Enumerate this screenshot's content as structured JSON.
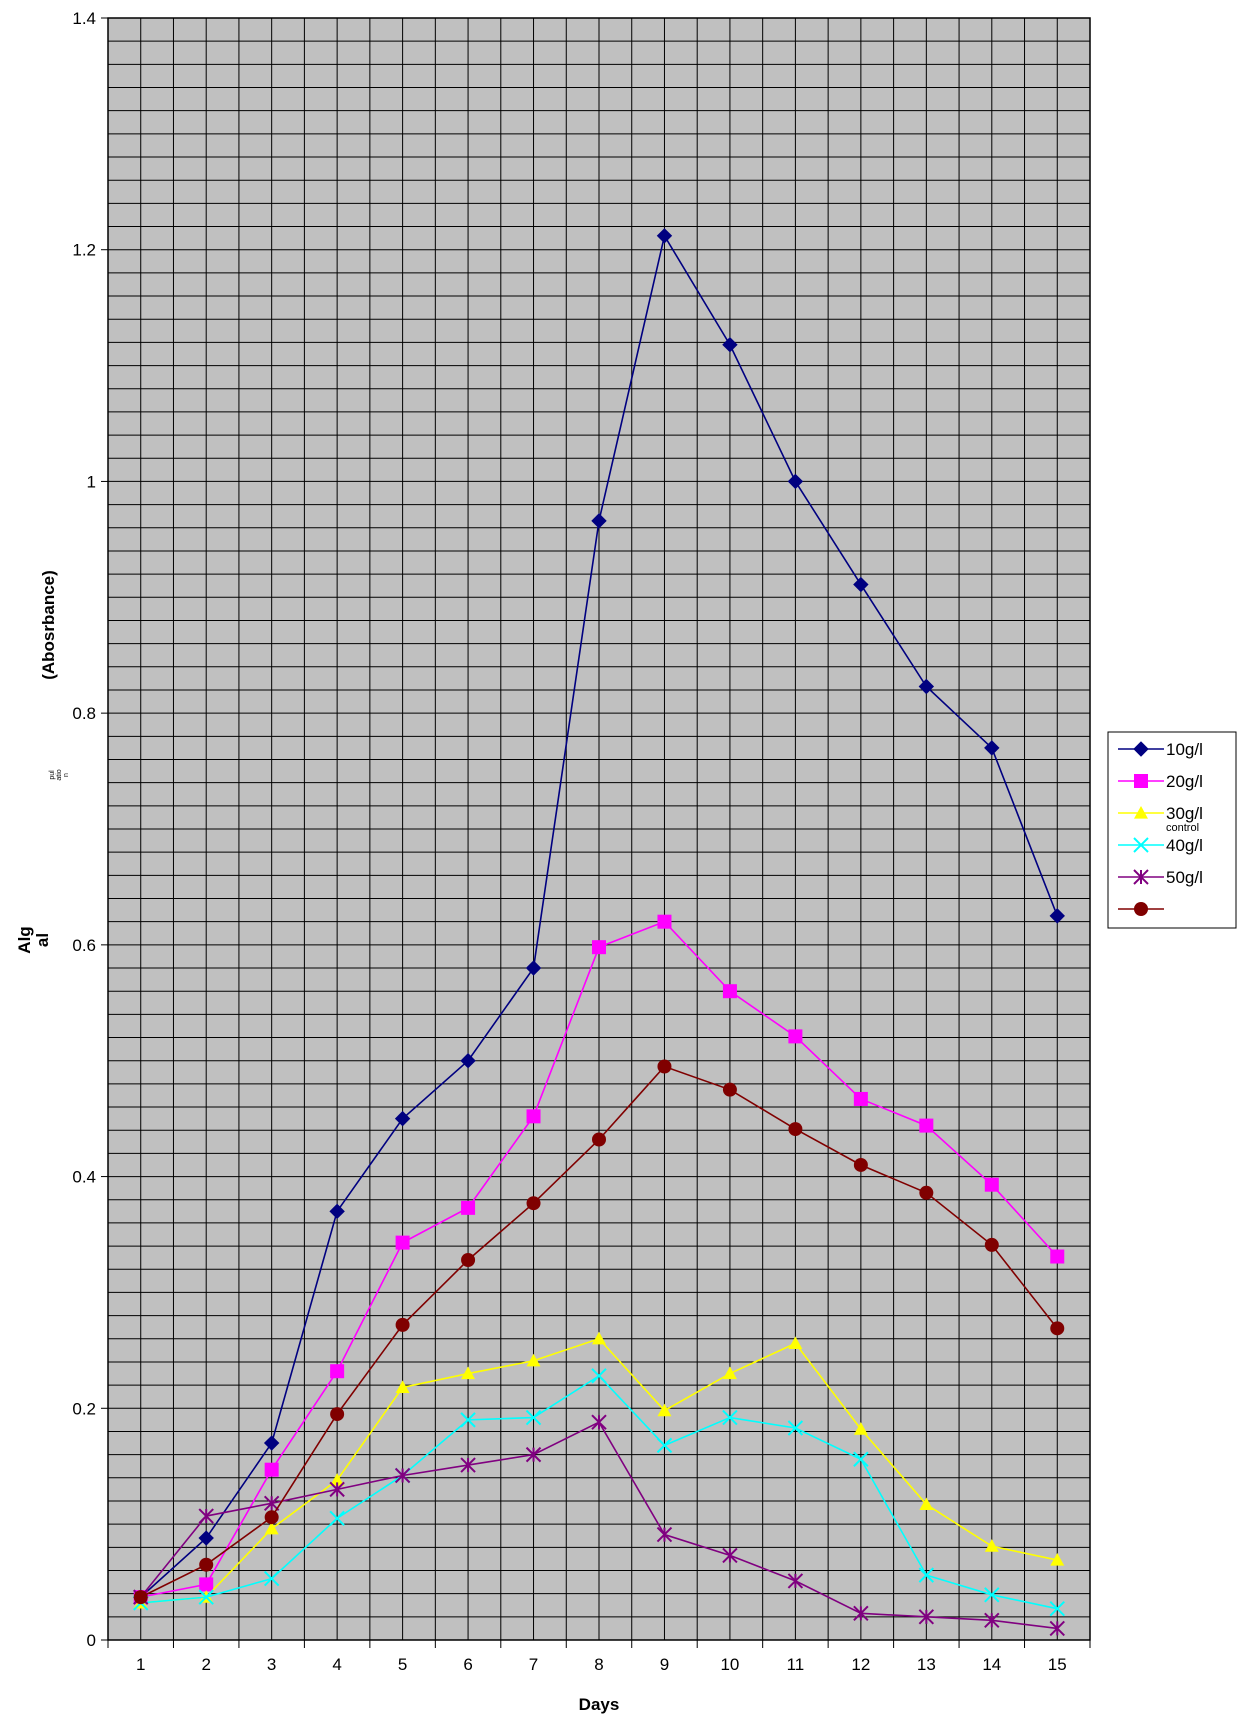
{
  "chart_data": {
    "type": "line",
    "title": "",
    "xlabel": "Days",
    "ylabel_parts": [
      "Alg",
      "al",
      "pul",
      "atio",
      "n",
      "(Abosrbance)"
    ],
    "legend_extra_label": "control",
    "categories": [
      "1",
      "2",
      "3",
      "4",
      "5",
      "6",
      "7",
      "8",
      "9",
      "10",
      "11",
      "12",
      "13",
      "14",
      "15"
    ],
    "ylim": [
      0,
      1.4
    ],
    "y_ticks": [
      "0",
      "0.2",
      "0.4",
      "0.6",
      "0.8",
      "1",
      "1.2",
      "1.4"
    ],
    "grid": true,
    "legend_position": "right",
    "series": [
      {
        "name": "10g/l",
        "color": "#000080",
        "marker": "diamond",
        "values": [
          0.037,
          0.088,
          0.17,
          0.37,
          0.45,
          0.5,
          0.58,
          0.966,
          1.212,
          1.118,
          1.0,
          0.911,
          0.823,
          0.77,
          0.625
        ]
      },
      {
        "name": "20g/l",
        "color": "#FF00FF",
        "marker": "square",
        "values": [
          0.037,
          0.048,
          0.147,
          0.232,
          0.343,
          0.373,
          0.452,
          0.598,
          0.62,
          0.56,
          0.521,
          0.467,
          0.444,
          0.393,
          0.331
        ]
      },
      {
        "name": "30g/l",
        "color": "#FFFF00",
        "marker": "triangle",
        "values": [
          0.032,
          0.037,
          0.096,
          0.138,
          0.218,
          0.23,
          0.241,
          0.26,
          0.198,
          0.23,
          0.256,
          0.182,
          0.117,
          0.081,
          0.069
        ]
      },
      {
        "name": "40g/l",
        "color": "#00FFFF",
        "marker": "x",
        "values": [
          0.032,
          0.037,
          0.053,
          0.105,
          0.142,
          0.19,
          0.192,
          0.228,
          0.168,
          0.192,
          0.183,
          0.156,
          0.056,
          0.039,
          0.027
        ]
      },
      {
        "name": "50g/l",
        "color": "#800080",
        "marker": "star",
        "values": [
          0.037,
          0.107,
          0.118,
          0.13,
          0.142,
          0.151,
          0.16,
          0.188,
          0.091,
          0.073,
          0.051,
          0.023,
          0.02,
          0.017,
          0.01
        ]
      },
      {
        "name": "",
        "color": "#800000",
        "marker": "circle",
        "values": [
          0.037,
          0.065,
          0.106,
          0.195,
          0.272,
          0.328,
          0.377,
          0.432,
          0.495,
          0.475,
          0.441,
          0.41,
          0.386,
          0.341,
          0.269
        ]
      }
    ]
  }
}
